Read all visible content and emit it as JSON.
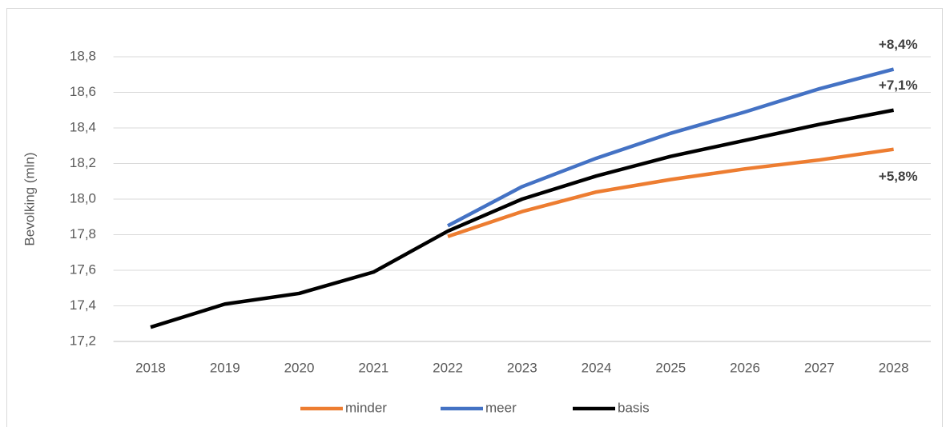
{
  "chart_data": {
    "type": "line",
    "y_label": "Bevolking (mln)",
    "categories": [
      "2018",
      "2019",
      "2020",
      "2021",
      "2022",
      "2023",
      "2024",
      "2025",
      "2026",
      "2027",
      "2028"
    ],
    "series": [
      {
        "name": "minder",
        "color": "#ed7d31",
        "values": [
          null,
          null,
          null,
          null,
          17.79,
          17.93,
          18.04,
          18.11,
          18.17,
          18.22,
          18.28
        ]
      },
      {
        "name": "meer",
        "color": "#4472c4",
        "values": [
          null,
          null,
          null,
          null,
          17.85,
          18.07,
          18.23,
          18.37,
          18.49,
          18.62,
          18.73
        ]
      },
      {
        "name": "basis",
        "color": "#000000",
        "values": [
          17.28,
          17.41,
          17.47,
          17.59,
          17.82,
          18.0,
          18.13,
          18.24,
          18.33,
          18.42,
          18.5
        ]
      }
    ],
    "annotations": [
      "+5,8%",
      "+8,4%",
      "+7,1%"
    ],
    "ylim": [
      17.2,
      18.8
    ],
    "yticks": [
      {
        "value": 17.2,
        "label": "17,2"
      },
      {
        "value": 17.4,
        "label": "17,4"
      },
      {
        "value": 17.6,
        "label": "17,6"
      },
      {
        "value": 17.8,
        "label": "17,8"
      },
      {
        "value": 18.0,
        "label": "18,0"
      },
      {
        "value": 18.2,
        "label": "18,2"
      },
      {
        "value": 18.4,
        "label": "18,4"
      },
      {
        "value": 18.6,
        "label": "18,6"
      },
      {
        "value": 18.8,
        "label": "18,8"
      }
    ],
    "grid": true,
    "legend": "bottom"
  }
}
